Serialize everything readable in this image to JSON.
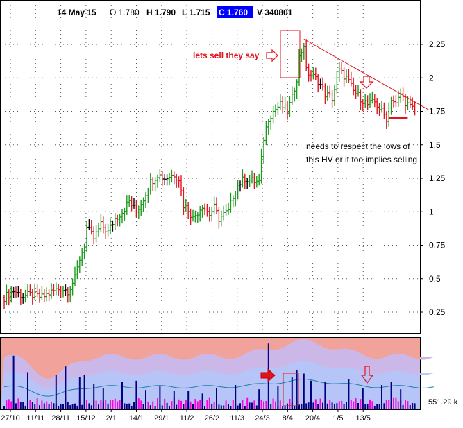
{
  "header": {
    "date": "14 May 15",
    "open": "O 1.780",
    "high": "H 1.790",
    "low": "L 1.715",
    "close": "C 1.760",
    "volume": "V 340801"
  },
  "annotations": {
    "sell_note": "lets sell they say",
    "hv_note_line1": "needs to respect the lows of",
    "hv_note_line2": "this HV or it too implies selling"
  },
  "colors": {
    "up": "#1a9a1a",
    "down": "#e0141e",
    "neutral": "#000000",
    "volume_band_outer": "#f1a29b",
    "volume_band_mid": "#cbb8e8",
    "volume_band_inner": "#b7c4f7",
    "volume_bar": "#000080",
    "volume_bar_low": "#ff00dd",
    "annotation": "#e0141e",
    "close_badge": "#0000ff"
  },
  "chart_data": [
    {
      "type": "candlestick",
      "ylim": [
        0.1,
        2.4
      ],
      "y_ticks": [
        "0.25",
        "0.5",
        "0.75",
        "1",
        "1.25",
        "1.5",
        "1.75",
        "2",
        "2.25"
      ],
      "x_tick_labels": [
        "27/10",
        "11/11",
        "28/11",
        "15/12",
        "2/1",
        "14/1",
        "29/1",
        "11/2",
        "26/2",
        "11/3",
        "24/3",
        "8/4",
        "20/4",
        "1/5",
        "13/5"
      ],
      "close_path": [
        [
          0,
          0.36
        ],
        [
          4,
          0.41
        ],
        [
          8,
          0.37
        ],
        [
          12,
          0.38
        ],
        [
          16,
          0.36
        ],
        [
          20,
          0.4
        ],
        [
          24,
          0.43
        ],
        [
          27,
          0.41
        ],
        [
          30,
          0.5
        ],
        [
          32,
          0.65
        ],
        [
          34,
          0.75
        ],
        [
          35,
          0.88
        ],
        [
          38,
          0.8
        ],
        [
          41,
          0.9
        ],
        [
          44,
          0.85
        ],
        [
          47,
          0.95
        ],
        [
          50,
          1.0
        ],
        [
          53,
          1.08
        ],
        [
          56,
          1.0
        ],
        [
          59,
          1.1
        ],
        [
          62,
          1.22
        ],
        [
          65,
          1.28
        ],
        [
          68,
          1.25
        ],
        [
          72,
          1.28
        ],
        [
          74,
          1.25
        ],
        [
          76,
          1.05
        ],
        [
          78,
          1.02
        ],
        [
          80,
          0.95
        ],
        [
          82,
          1.0
        ],
        [
          84,
          1.05
        ],
        [
          87,
          0.98
        ],
        [
          89,
          1.03
        ],
        [
          91,
          0.95
        ],
        [
          93,
          0.98
        ],
        [
          95,
          1.0
        ],
        [
          97,
          1.12
        ],
        [
          99,
          1.2
        ],
        [
          102,
          1.25
        ],
        [
          105,
          1.23
        ],
        [
          108,
          1.22
        ],
        [
          110,
          1.55
        ],
        [
          112,
          1.7
        ],
        [
          114,
          1.75
        ],
        [
          117,
          1.8
        ],
        [
          120,
          1.75
        ],
        [
          122,
          1.85
        ],
        [
          124,
          2.0
        ],
        [
          125,
          2.15
        ],
        [
          127,
          2.25
        ],
        [
          128,
          2.05
        ],
        [
          130,
          2.02
        ],
        [
          133,
          1.98
        ],
        [
          136,
          1.88
        ],
        [
          139,
          1.85
        ],
        [
          142,
          2.05
        ],
        [
          145,
          2.0
        ],
        [
          148,
          1.9
        ],
        [
          151,
          1.85
        ],
        [
          154,
          1.8
        ],
        [
          157,
          1.82
        ],
        [
          160,
          1.75
        ],
        [
          162,
          1.7
        ],
        [
          164,
          1.85
        ],
        [
          166,
          1.8
        ],
        [
          168,
          1.88
        ],
        [
          170,
          1.82
        ],
        [
          172,
          1.78
        ],
        [
          174,
          1.76
        ]
      ],
      "trendline": [
        [
          127,
          2.29
        ],
        [
          180,
          1.76
        ]
      ],
      "hv_low_line": [
        [
          163,
          1.7
        ],
        [
          171,
          1.7
        ]
      ]
    },
    {
      "type": "bar",
      "name": "volume",
      "value_label": "551.29 k",
      "x_tick_labels": [
        "27/10",
        "11/11",
        "28/11",
        "15/12",
        "2/1",
        "14/1",
        "29/1",
        "11/2",
        "26/2",
        "11/3",
        "24/3",
        "8/4",
        "20/4",
        "1/5",
        "13/5"
      ],
      "spikes": [
        [
          4,
          0.75
        ],
        [
          10,
          0.52
        ],
        [
          22,
          0.48
        ],
        [
          26,
          0.6
        ],
        [
          32,
          0.45
        ],
        [
          34,
          0.48
        ],
        [
          38,
          0.35
        ],
        [
          42,
          0.3
        ],
        [
          50,
          0.38
        ],
        [
          56,
          0.4
        ],
        [
          60,
          0.27
        ],
        [
          66,
          0.32
        ],
        [
          72,
          0.26
        ],
        [
          78,
          0.26
        ],
        [
          84,
          0.22
        ],
        [
          90,
          0.3
        ],
        [
          98,
          0.34
        ],
        [
          108,
          0.28
        ],
        [
          112,
          0.92
        ],
        [
          116,
          0.32
        ],
        [
          122,
          0.45
        ],
        [
          124,
          0.55
        ],
        [
          127,
          0.5
        ],
        [
          130,
          0.4
        ],
        [
          136,
          0.38
        ],
        [
          146,
          0.42
        ],
        [
          152,
          0.3
        ],
        [
          160,
          0.34
        ],
        [
          164,
          0.38
        ],
        [
          168,
          0.28
        ]
      ]
    }
  ]
}
